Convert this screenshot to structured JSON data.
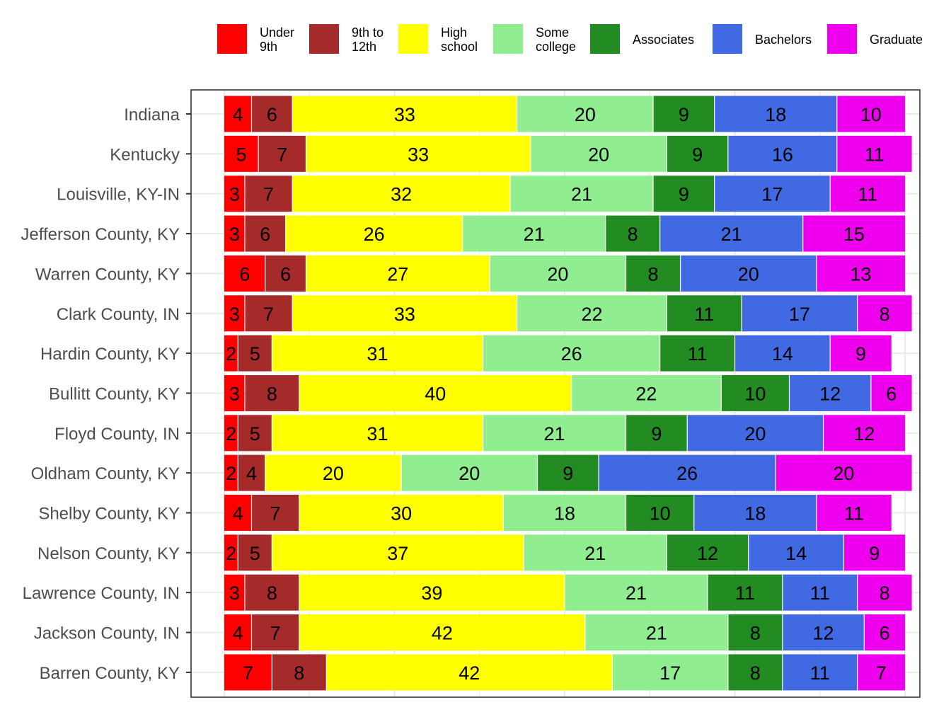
{
  "chart_data": {
    "type": "bar",
    "orientation": "horizontal",
    "stacked": true,
    "title": "",
    "xlabel": "",
    "ylabel": "",
    "grid": true,
    "legend_position": "top",
    "xlim": [
      0,
      100
    ],
    "categories": [
      "Indiana",
      "Kentucky",
      "Louisville, KY-IN",
      "Jefferson County, KY",
      "Warren County, KY",
      "Clark County, IN",
      "Hardin County, KY",
      "Bullitt County, KY",
      "Floyd County, IN",
      "Oldham County, KY",
      "Shelby County, KY",
      "Nelson County, KY",
      "Lawrence County, IN",
      "Jackson County, IN",
      "Barren County, KY"
    ],
    "series": [
      {
        "name": "Under 9th",
        "legend_lines": [
          "Under",
          "9th"
        ],
        "color": "#ff0000",
        "values": [
          4,
          5,
          3,
          3,
          6,
          3,
          2,
          3,
          2,
          2,
          4,
          2,
          3,
          4,
          7
        ]
      },
      {
        "name": "9th to 12th",
        "legend_lines": [
          "9th to",
          "12th"
        ],
        "color": "#a52a2a",
        "values": [
          6,
          7,
          7,
          6,
          6,
          7,
          5,
          8,
          5,
          4,
          7,
          5,
          8,
          7,
          8
        ]
      },
      {
        "name": "High school",
        "legend_lines": [
          "High",
          "school"
        ],
        "color": "#ffff00",
        "values": [
          33,
          33,
          32,
          26,
          27,
          33,
          31,
          40,
          31,
          20,
          30,
          37,
          39,
          42,
          42
        ]
      },
      {
        "name": "Some college",
        "legend_lines": [
          "Some",
          "college"
        ],
        "color": "#90ee90",
        "values": [
          20,
          20,
          21,
          21,
          20,
          22,
          26,
          22,
          21,
          20,
          18,
          21,
          21,
          21,
          17
        ]
      },
      {
        "name": "Associates",
        "legend_lines": [
          "Associates"
        ],
        "color": "#228b22",
        "values": [
          9,
          9,
          9,
          8,
          8,
          11,
          11,
          10,
          9,
          9,
          10,
          12,
          11,
          8,
          8
        ]
      },
      {
        "name": "Bachelors",
        "legend_lines": [
          "Bachelors"
        ],
        "color": "#4169e1",
        "values": [
          18,
          16,
          17,
          21,
          20,
          17,
          14,
          12,
          20,
          26,
          18,
          14,
          11,
          12,
          11
        ]
      },
      {
        "name": "Graduate",
        "legend_lines": [
          "Graduate"
        ],
        "color": "#ee00ee",
        "values": [
          10,
          11,
          11,
          15,
          13,
          8,
          9,
          6,
          12,
          20,
          11,
          9,
          8,
          6,
          7
        ]
      }
    ],
    "colors": {
      "panel_border": "#333333",
      "gridline": "#ebebeb",
      "axis_text": "#4d4d4d",
      "label_text": "#000000",
      "separator": "#ffffff"
    }
  }
}
